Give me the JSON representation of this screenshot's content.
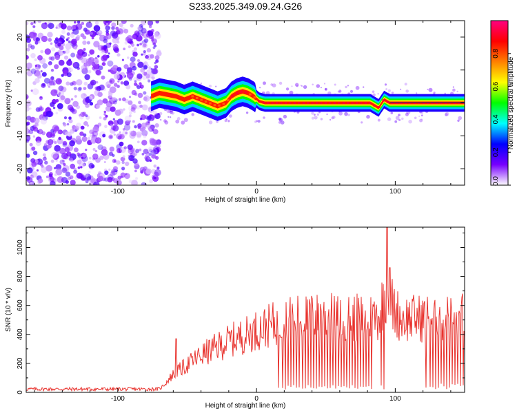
{
  "title": "S233.2025.349.09.24.G26",
  "chart_data": [
    {
      "type": "heatmap",
      "xlabel": "Height of straight line (km)",
      "ylabel": "Frequency (Hz)",
      "xlim": [
        -166,
        150
      ],
      "ylim": [
        -25,
        25
      ],
      "x_ticks": [
        -100,
        0,
        100
      ],
      "y_ticks": [
        -20,
        -10,
        0,
        10,
        20
      ],
      "colorbar": {
        "label": "Normalized spectral amplitude",
        "range": [
          0,
          1
        ],
        "ticks": [
          "0.0",
          "0.2",
          "0.4",
          "0.6",
          "0.8"
        ],
        "tick_values": [
          0,
          0.2,
          0.4,
          0.6,
          0.8
        ],
        "colors": [
          "#ffffff",
          "#7700ff",
          "#0000ff",
          "#00ffff",
          "#00ff00",
          "#ffff00",
          "#ff8000",
          "#ff0000",
          "#ff0080"
        ]
      },
      "ridge": {
        "x": [
          -76,
          -70,
          -64,
          -58,
          -52,
          -46,
          -40,
          -34,
          -28,
          -22,
          -18,
          -14,
          -10,
          -6,
          -2,
          2,
          6,
          14,
          30,
          50,
          70,
          82,
          86,
          88,
          92,
          96,
          100,
          120,
          150
        ],
        "y": [
          2,
          3,
          2.5,
          2,
          1,
          2,
          1,
          0,
          -1,
          0,
          2,
          3,
          3.5,
          3,
          2,
          0.5,
          0,
          0,
          0,
          0,
          0,
          0,
          -1,
          -1.5,
          1,
          0,
          0,
          0,
          0
        ]
      },
      "noise_region_x": [
        -166,
        -70
      ]
    },
    {
      "type": "line",
      "xlabel": "Height of straight line (km)",
      "ylabel": "SNR (10 * v/v)",
      "xlim": [
        -166,
        150
      ],
      "ylim": [
        0,
        1140
      ],
      "x_ticks": [
        -100,
        0,
        100
      ],
      "y_ticks": [
        0,
        200,
        400,
        600,
        800,
        1000
      ],
      "color": "#e8322d",
      "envelope": {
        "x": [
          -166,
          -70,
          -60,
          -50,
          -40,
          -30,
          -20,
          -10,
          0,
          10,
          20,
          30,
          40,
          50,
          60,
          70,
          80,
          88,
          92,
          95,
          98,
          104,
          120,
          150
        ],
        "y": [
          22,
          22,
          150,
          230,
          310,
          370,
          430,
          470,
          520,
          560,
          600,
          620,
          630,
          630,
          625,
          620,
          625,
          640,
          800,
          900,
          720,
          620,
          620,
          630
        ]
      },
      "spikes": [
        {
          "x": -58,
          "y": 370
        },
        {
          "x": 94,
          "y": 1140
        },
        {
          "x": 96,
          "y": 860
        }
      ],
      "dropouts_x": [
        16,
        19,
        21,
        23,
        25,
        27,
        29,
        31,
        33,
        35,
        37,
        39,
        41,
        43,
        45,
        47,
        49,
        51,
        53,
        55,
        57,
        59,
        61,
        63,
        65,
        67,
        69,
        71,
        73,
        75,
        77,
        79,
        81,
        83,
        90,
        92,
        94,
        122,
        125,
        127,
        129,
        131,
        133,
        135,
        137,
        139,
        141,
        143,
        145,
        147,
        149
      ]
    }
  ]
}
